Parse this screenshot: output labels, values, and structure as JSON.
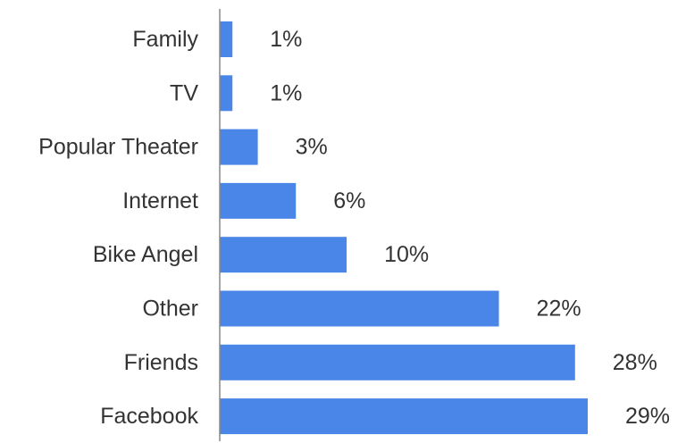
{
  "chart_data": {
    "type": "bar",
    "orientation": "horizontal",
    "categories": [
      "Family",
      "TV",
      "Popular Theater",
      "Internet",
      "Bike Angel",
      "Other",
      "Friends",
      "Facebook"
    ],
    "values": [
      1,
      1,
      3,
      6,
      10,
      22,
      28,
      29
    ],
    "value_labels": [
      "1%",
      "1%",
      "3%",
      "6%",
      "10%",
      "22%",
      "28%",
      "29%"
    ],
    "unit": "%",
    "xlim": [
      0,
      29
    ],
    "title": "",
    "xlabel": "",
    "ylabel": "",
    "grid": false,
    "legend": "none",
    "bar_color": "#4a86e8",
    "axis_color": "#888888",
    "text_color": "#333333"
  }
}
